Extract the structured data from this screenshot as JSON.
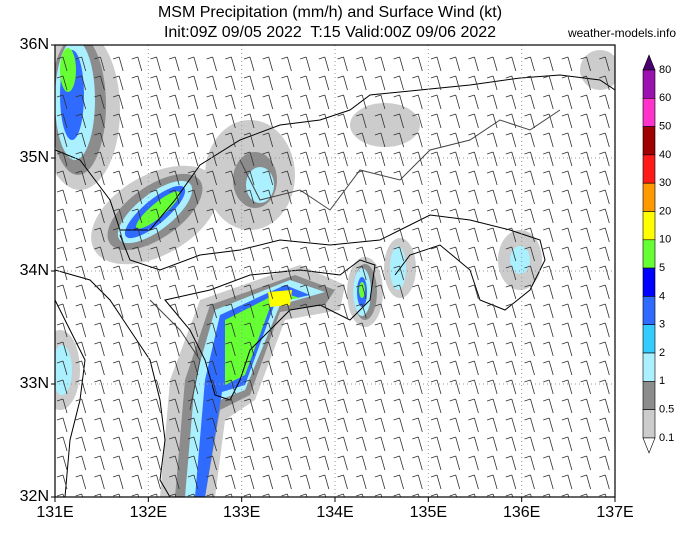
{
  "header": {
    "title": "MSM Precipitation (mm/h) and Surface Wind (kt)",
    "subtitle": "Init:09Z 09/05 2022  T:15 Valid:00Z 09/06 2022",
    "source": "weather-models.info"
  },
  "axes": {
    "lon_labels": [
      "131E",
      "132E",
      "133E",
      "134E",
      "135E",
      "136E",
      "137E"
    ],
    "lat_labels": [
      "36N",
      "35N",
      "34N",
      "33N",
      "32N"
    ]
  },
  "colorbar": {
    "levels": [
      80,
      60,
      50,
      40,
      30,
      20,
      10,
      5,
      4,
      3,
      2,
      1,
      0.5,
      0.1
    ],
    "colors": [
      "#4b0070",
      "#9a10b0",
      "#ff33cc",
      "#a00000",
      "#ff1a1a",
      "#ff9900",
      "#ffff00",
      "#66ff33",
      "#0000ff",
      "#2f6bff",
      "#33ccff",
      "#aaf0ff",
      "#8c8c8c",
      "#cccccc",
      "#ffffff"
    ]
  }
}
